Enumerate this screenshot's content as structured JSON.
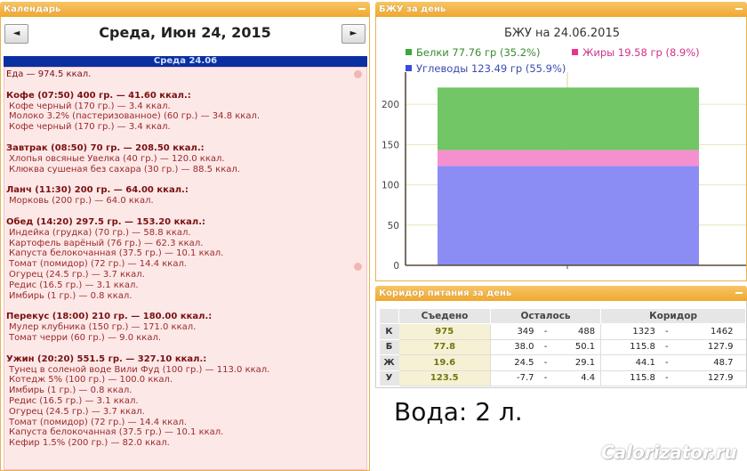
{
  "calendar_panel": {
    "title": "Календарь",
    "prev_label": "◄",
    "next_label": "►",
    "date_title": "Среда, Июн 24, 2015",
    "day_bar": "Среда 24.06"
  },
  "diary": {
    "food_total": "Еда — 974.5 ккал.",
    "meals": [
      {
        "title": "Кофе (07:50) 400 гр. — 41.60 ккал.:",
        "items": [
          "Кофе черный (170 гр.) — 3.4 ккал.",
          "Молоко 3.2% (пастеризованное) (60 гр.) — 34.8 ккал.",
          "Кофе черный (170 гр.) — 3.4 ккал."
        ]
      },
      {
        "title": "Завтрак (08:50) 70 гр. — 208.50 ккал.:",
        "items": [
          "Хлопья овсяные Увелка (40 гр.) — 120.0 ккал.",
          "Клюква сушеная без сахара (30 гр.) — 88.5 ккал."
        ]
      },
      {
        "title": "Ланч (11:30) 200 гр. — 64.00 ккал.:",
        "items": [
          "Морковь (200 гр.) — 64.0 ккал."
        ]
      },
      {
        "title": "Обед (14:20) 297.5 гр. — 153.20 ккал.:",
        "items": [
          "Индейка (грудка) (70 гр.) — 58.8 ккал.",
          "Картофель варёный (76 гр.) — 62.3 ккал.",
          "Капуста белокочанная (37.5 гр.) — 10.1 ккал.",
          "Томат (помидор) (72 гр.) — 14.4 ккал.",
          "Огурец (24.5 гр.) — 3.7 ккал.",
          "Редис (16.5 гр.) — 3.1 ккал.",
          "Имбирь (1 гр.) — 0.8 ккал."
        ]
      },
      {
        "title": "Перекус (18:00) 210 гр. — 180.00 ккал.:",
        "items": [
          "Мулер клубника (150 гр.) — 171.0 ккал.",
          "Томат черри (60 гр.) — 9.0 ккал."
        ]
      },
      {
        "title": "Ужин (20:20) 551.5 гр. — 327.10 ккал.:",
        "items": [
          "Тунец в соленой воде Вили Фуд (100 гр.) — 113.0 ккал.",
          "Котедж 5% (100 гр.) — 100.0 ккал.",
          "Имбирь (1 гр.) — 0.8 ккал.",
          "Редис (16.5 гр.) — 3.1 ккал.",
          "Огурец (24.5 гр.) — 3.7 ккал.",
          "Томат (помидор) (72 гр.) — 14.4 ккал.",
          "Капуста белокочанная (37.5 гр.) — 10.1 ккал.",
          "Кефир 1.5% (200 гр.) — 82.0 ккал."
        ]
      }
    ]
  },
  "bju_panel": {
    "title": "БЖУ за день"
  },
  "chart_data": {
    "type": "bar",
    "title": "БЖУ на 24.06.2015",
    "stacked": true,
    "categories": [
      ""
    ],
    "series": [
      {
        "name": "Углеводы 123.49 гр (55.9%)",
        "values": [
          123.49
        ],
        "color": "#8c8cf5"
      },
      {
        "name": "Жиры 19.58 гр (8.9%)",
        "values": [
          19.58
        ],
        "color": "#f68fcf"
      },
      {
        "name": "Белки 77.76 гр (35.2%)",
        "values": [
          77.76
        ],
        "color": "#72c665"
      }
    ],
    "legend_order": [
      {
        "name": "Белки 77.76 гр (35.2%)",
        "color": "#3da83a",
        "text_color": "#3a8a30"
      },
      {
        "name": "Жиры 19.58 гр (8.9%)",
        "color": "#e8338f",
        "text_color": "#d0308a"
      },
      {
        "name": "Углеводы 123.49 гр (55.9%)",
        "color": "#3b4bd8",
        "text_color": "#3b4bb0"
      }
    ],
    "yticks": [
      "0",
      "50",
      "100",
      "150",
      "200"
    ],
    "ylim": [
      0,
      240
    ],
    "grid": true,
    "legend_position": "top"
  },
  "corridor_panel": {
    "title": "Коридор питания за день",
    "headers": [
      "Съедено",
      "Осталось",
      "Коридор"
    ],
    "rows": [
      {
        "label": "К",
        "eaten": "975",
        "left_min": "349",
        "left_max": "488",
        "c_min": "1323",
        "c_max": "1462"
      },
      {
        "label": "Б",
        "eaten": "77.8",
        "left_min": "38.0",
        "left_max": "50.1",
        "c_min": "115.8",
        "c_max": "127.9"
      },
      {
        "label": "Ж",
        "eaten": "19.6",
        "left_min": "24.5",
        "left_max": "29.1",
        "c_min": "44.1",
        "c_max": "48.7"
      },
      {
        "label": "У",
        "eaten": "123.5",
        "left_min": "-7.7",
        "left_max": "4.4",
        "c_min": "115.8",
        "c_max": "127.9"
      }
    ],
    "dash": "-"
  },
  "water": "Вода: 2 л.",
  "watermark": "Calorizator.ru",
  "colors": {
    "panel_header": "#f0a830",
    "day_bar": "#0a2fa0",
    "diary_bg": "#fde8e8",
    "diary_text": "#8a1c1c"
  }
}
